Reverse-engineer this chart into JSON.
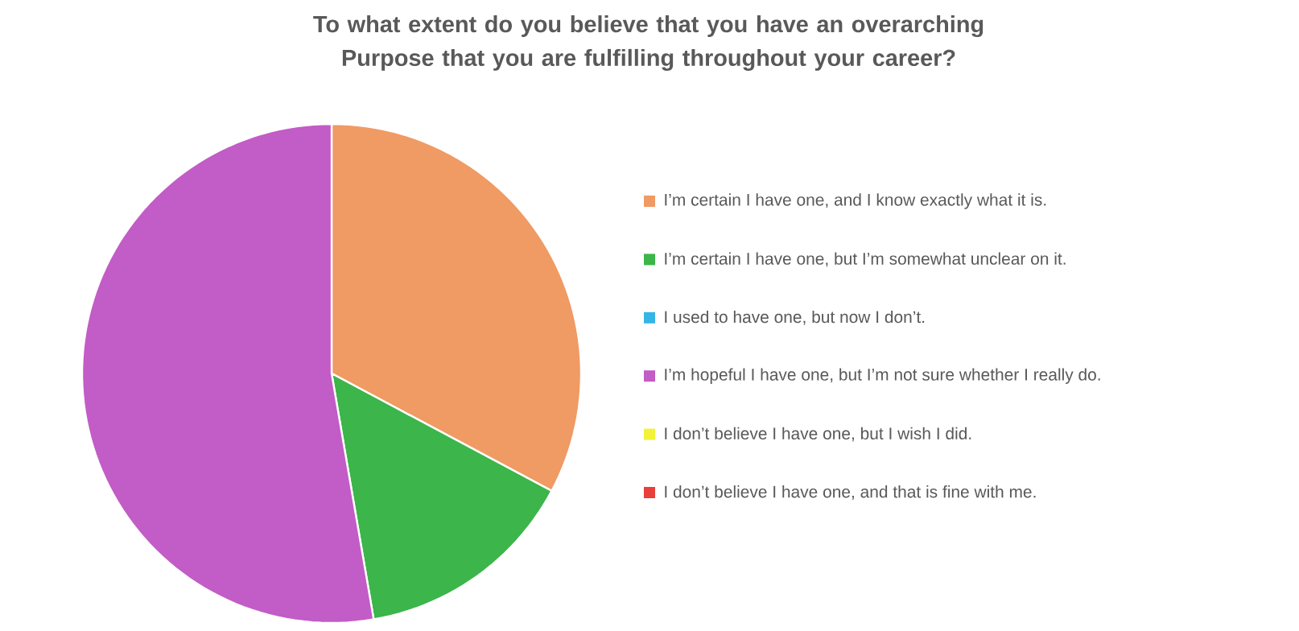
{
  "chart_data": {
    "type": "pie",
    "title": "To what extent do you believe that you have an overarching Purpose that you are fulfilling throughout your career?",
    "categories": [
      "I’m certain I have one, and I know exactly what it is.",
      "I’m certain I have one, but I’m somewhat unclear on it.",
      "I used to have one, but now I don’t.",
      "I’m hopeful I have one, but I’m not sure whether I really do.",
      "I don’t believe I have one, but I wish I did.",
      "I don’t believe I have one, and that is fine with me."
    ],
    "values": [
      32.8,
      14.5,
      0,
      52.7,
      0,
      0
    ],
    "colors": [
      "#f09a64",
      "#3cb54a",
      "#35b5e5",
      "#c25cc6",
      "#f2f23a",
      "#e8403a"
    ],
    "legend": "right"
  }
}
